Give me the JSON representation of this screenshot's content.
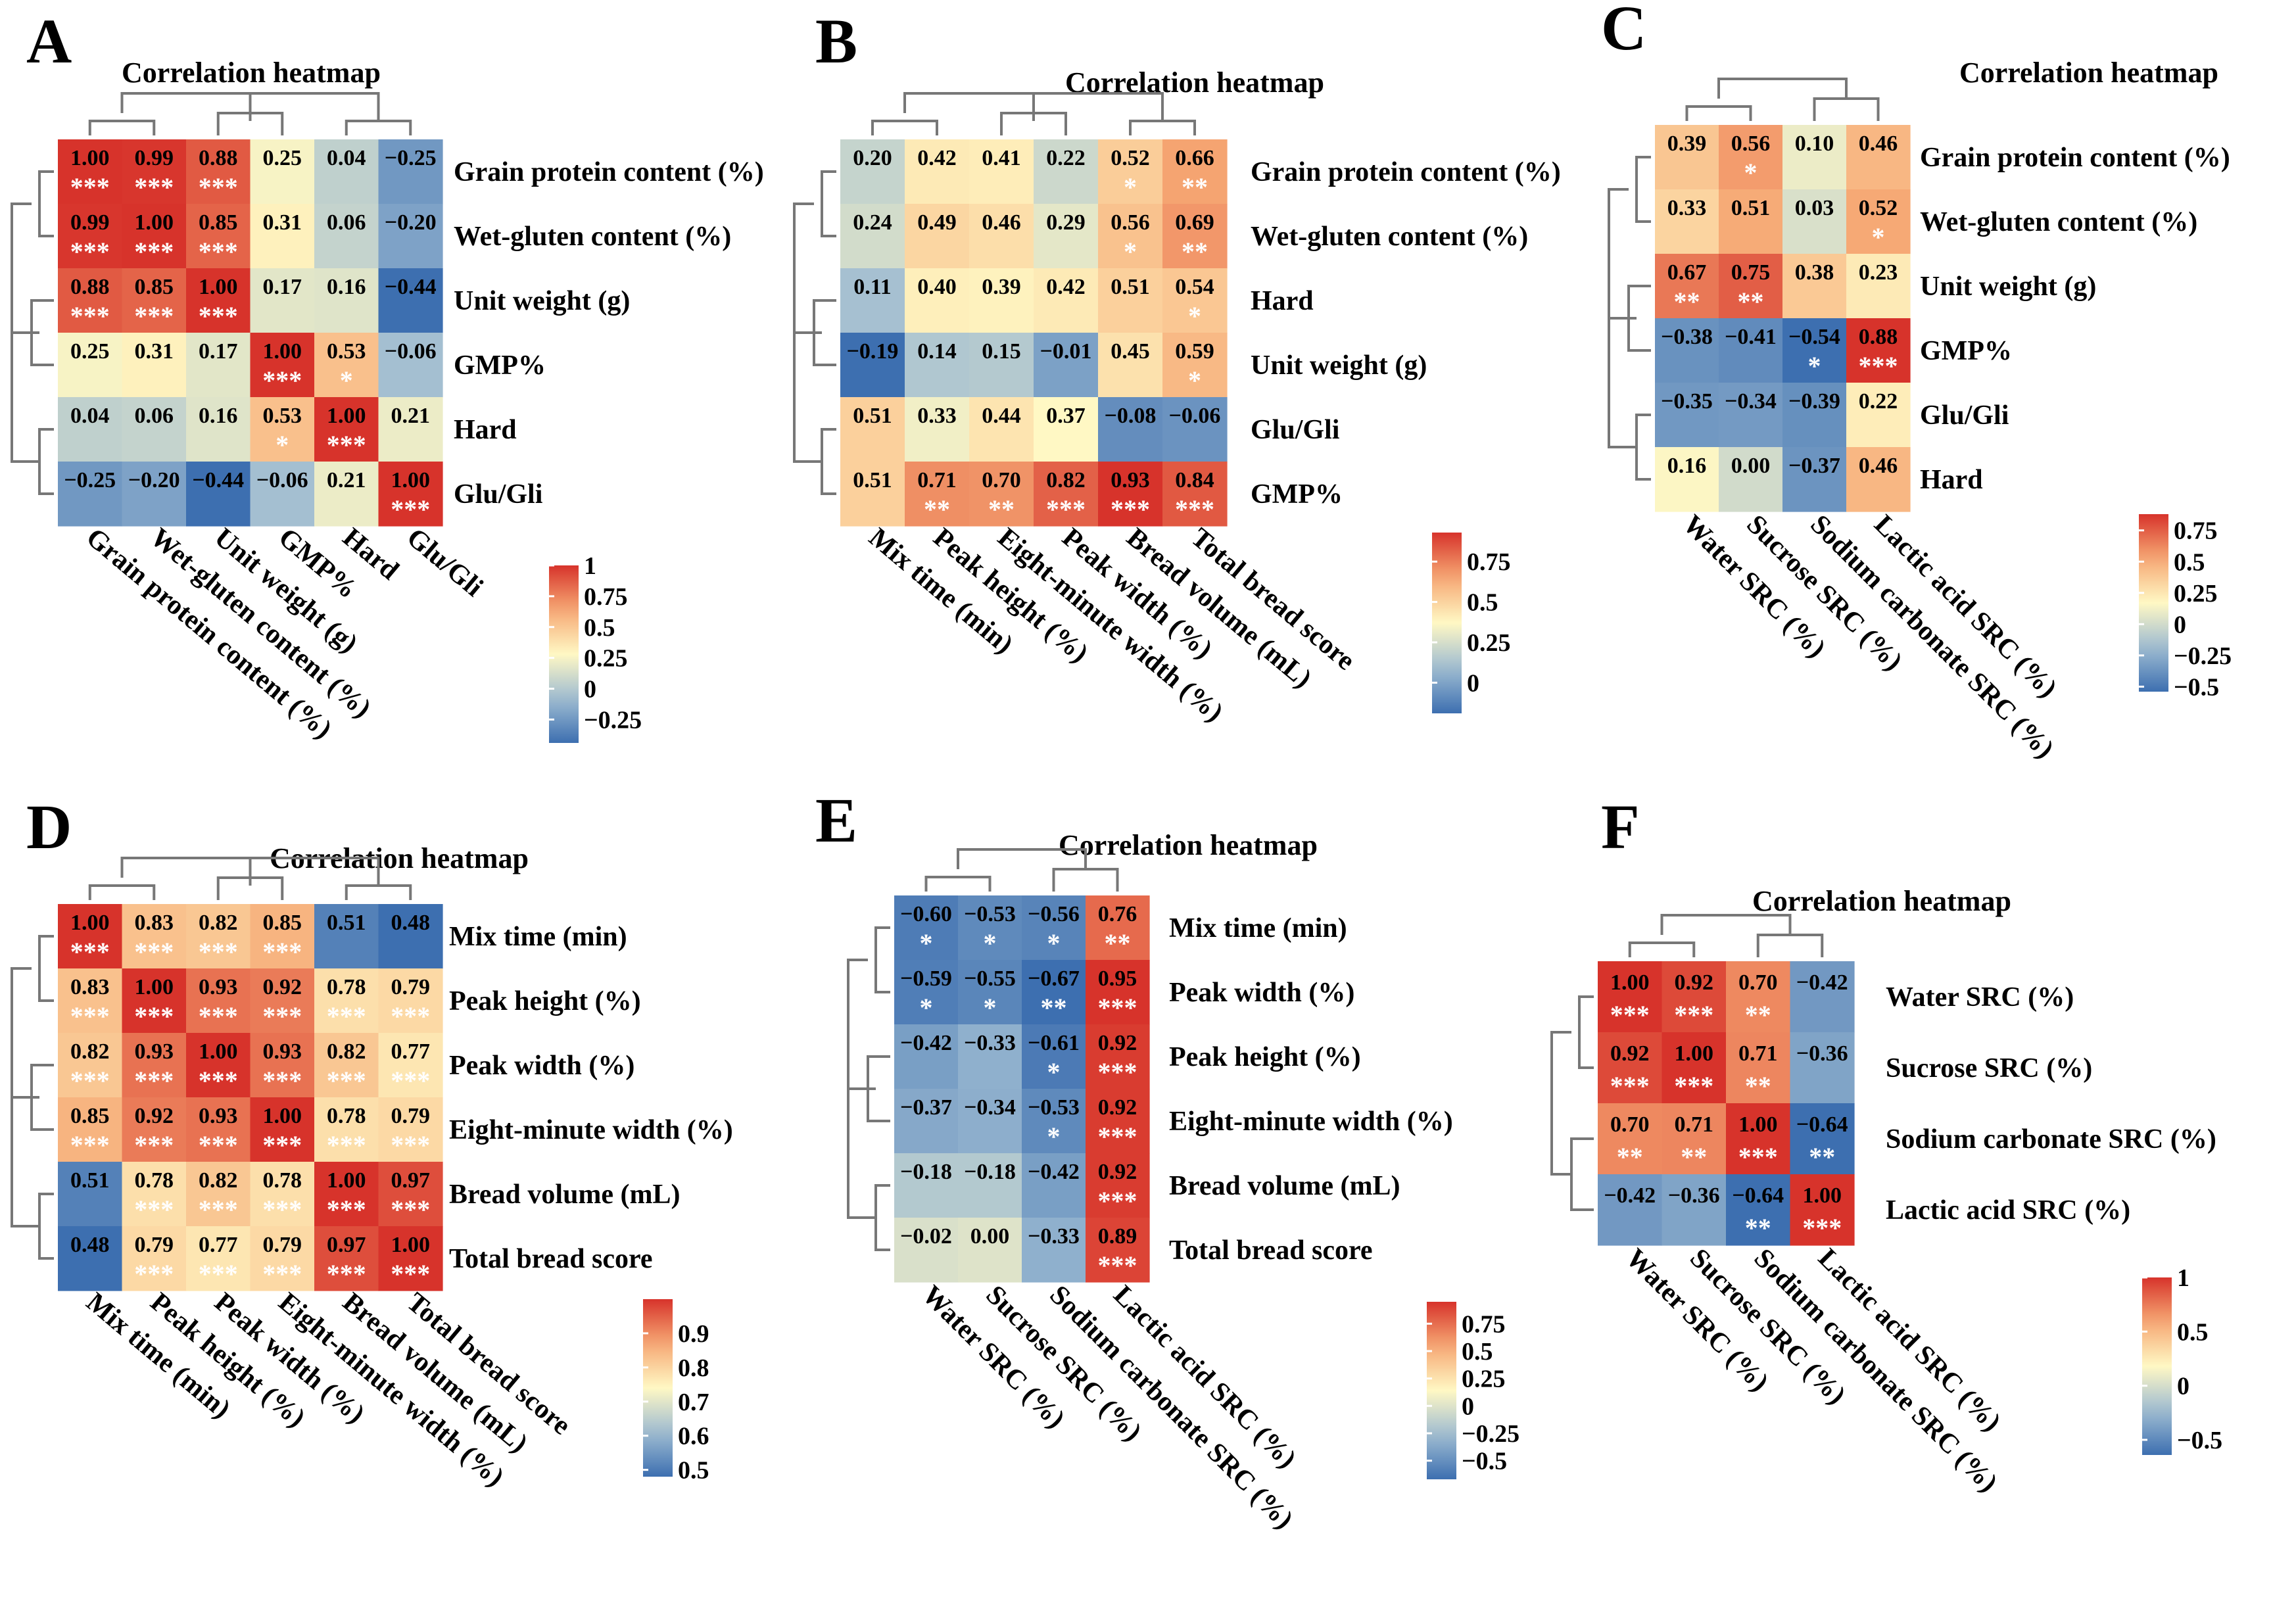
{
  "colors": {
    "scale": [
      "#3d6fb0",
      "#9fbcd2",
      "#fff8c4",
      "#f6a874",
      "#d7332b"
    ],
    "stars": "#ffffff",
    "dendrogram": "#777777",
    "text": "#000000"
  },
  "chart_data": [
    {
      "letter": "A",
      "type": "heatmap",
      "title": "Correlation heatmap",
      "rows": [
        "Grain protein content (%)",
        "Wet-gluten content (%)",
        "Unit weight (g)",
        "GMP%",
        "Hard",
        "Glu/Gli"
      ],
      "cols": [
        "Grain protein content (%)",
        "Wet-gluten content (%)",
        "Unit weight (g)",
        "GMP%",
        "Hard",
        "Glu/Gli"
      ],
      "values": [
        [
          "1.00",
          "0.99",
          "0.88",
          "0.25",
          "0.04",
          "−0.25"
        ],
        [
          "0.99",
          "1.00",
          "0.85",
          "0.31",
          "0.06",
          "−0.20"
        ],
        [
          "0.88",
          "0.85",
          "1.00",
          "0.17",
          "0.16",
          "−0.44"
        ],
        [
          "0.25",
          "0.31",
          "0.17",
          "1.00",
          "0.53",
          "−0.06"
        ],
        [
          "0.04",
          "0.06",
          "0.16",
          "0.53",
          "1.00",
          "0.21"
        ],
        [
          "−0.25",
          "−0.20",
          "−0.44",
          "−0.06",
          "0.21",
          "1.00"
        ]
      ],
      "stars": [
        [
          "***",
          "***",
          "***",
          "",
          "",
          ""
        ],
        [
          "***",
          "***",
          "***",
          "",
          "",
          ""
        ],
        [
          "***",
          "***",
          "***",
          "",
          "",
          ""
        ],
        [
          "",
          "",
          "",
          "***",
          "*",
          ""
        ],
        [
          "",
          "",
          "",
          "*",
          "***",
          ""
        ],
        [
          "",
          "",
          "",
          "",
          "",
          "***"
        ]
      ],
      "legend": {
        "min": -0.44,
        "max": 1,
        "ticks": [
          "1",
          "0.75",
          "0.5",
          "0.25",
          "0",
          "−0.25"
        ]
      }
    },
    {
      "letter": "B",
      "type": "heatmap",
      "title": "Correlation heatmap",
      "rows": [
        "Grain protein content (%)",
        "Wet-gluten content (%)",
        "Hard",
        "Unit weight (g)",
        "Glu/Gli",
        "GMP%"
      ],
      "cols": [
        "Mix time (min)",
        "Peak height (%)",
        "Eight-minute width (%)",
        "Peak width (%)",
        "Bread volume (mL)",
        "Total bread score"
      ],
      "values": [
        [
          "0.20",
          "0.42",
          "0.41",
          "0.22",
          "0.52",
          "0.66"
        ],
        [
          "0.24",
          "0.49",
          "0.46",
          "0.29",
          "0.56",
          "0.69"
        ],
        [
          "0.11",
          "0.40",
          "0.39",
          "0.42",
          "0.51",
          "0.54"
        ],
        [
          "−0.19",
          "0.14",
          "0.15",
          "−0.01",
          "0.45",
          "0.59"
        ],
        [
          "0.51",
          "0.33",
          "0.44",
          "0.37",
          "−0.08",
          "−0.06"
        ],
        [
          "0.51",
          "0.71",
          "0.70",
          "0.82",
          "0.93",
          "0.84"
        ]
      ],
      "stars": [
        [
          "",
          "",
          "",
          "",
          "*",
          "**"
        ],
        [
          "",
          "",
          "",
          "",
          "*",
          "**"
        ],
        [
          "",
          "",
          "",
          "",
          "",
          "*"
        ],
        [
          "",
          "",
          "",
          "",
          "",
          "*"
        ],
        [
          "",
          "",
          "",
          "",
          "",
          ""
        ],
        [
          "",
          "**",
          "**",
          "***",
          "***",
          "***"
        ]
      ],
      "legend": {
        "min": -0.19,
        "max": 0.93,
        "ticks": [
          "0.75",
          "0.5",
          "0.25",
          "0"
        ]
      }
    },
    {
      "letter": "C",
      "type": "heatmap",
      "title": "Correlation heatmap",
      "rows": [
        "Grain protein content (%)",
        "Wet-gluten content (%)",
        "Unit weight (g)",
        "GMP%",
        "Glu/Gli",
        "Hard"
      ],
      "cols": [
        "Water SRC (%)",
        "Sucrose SRC (%)",
        "Sodium carbonate SRC (%)",
        "Lactic acid SRC (%)"
      ],
      "values": [
        [
          "0.39",
          "0.56",
          "0.10",
          "0.46"
        ],
        [
          "0.33",
          "0.51",
          "0.03",
          "0.52"
        ],
        [
          "0.67",
          "0.75",
          "0.38",
          "0.23"
        ],
        [
          "−0.38",
          "−0.41",
          "−0.54",
          "0.88"
        ],
        [
          "−0.35",
          "−0.34",
          "−0.39",
          "0.22"
        ],
        [
          "0.16",
          "0.00",
          "−0.37",
          "0.46"
        ]
      ],
      "stars": [
        [
          "",
          "*",
          "",
          ""
        ],
        [
          "",
          "",
          "",
          "*"
        ],
        [
          "**",
          "**",
          "",
          ""
        ],
        [
          "",
          "",
          "*",
          "***"
        ],
        [
          "",
          "",
          "",
          ""
        ],
        [
          "",
          "",
          "",
          ""
        ]
      ],
      "legend": {
        "min": -0.54,
        "max": 0.88,
        "ticks": [
          "0.75",
          "0.5",
          "0.25",
          "0",
          "−0.25",
          "−0.5"
        ]
      }
    },
    {
      "letter": "D",
      "type": "heatmap",
      "title": "Correlation heatmap",
      "rows": [
        "Mix time (min)",
        "Peak height (%)",
        "Peak width (%)",
        "Eight-minute width (%)",
        "Bread volume (mL)",
        "Total bread score"
      ],
      "cols": [
        "Mix time (min)",
        "Peak height (%)",
        "Peak width (%)",
        "Eight-minute width (%)",
        "Bread volume (mL)",
        "Total bread score"
      ],
      "values": [
        [
          "1.00",
          "0.83",
          "0.82",
          "0.85",
          "0.51",
          "0.48"
        ],
        [
          "0.83",
          "1.00",
          "0.93",
          "0.92",
          "0.78",
          "0.79"
        ],
        [
          "0.82",
          "0.93",
          "1.00",
          "0.93",
          "0.82",
          "0.77"
        ],
        [
          "0.85",
          "0.92",
          "0.93",
          "1.00",
          "0.78",
          "0.79"
        ],
        [
          "0.51",
          "0.78",
          "0.82",
          "0.78",
          "1.00",
          "0.97"
        ],
        [
          "0.48",
          "0.79",
          "0.77",
          "0.79",
          "0.97",
          "1.00"
        ]
      ],
      "stars": [
        [
          "***",
          "***",
          "***",
          "***",
          "",
          ""
        ],
        [
          "***",
          "***",
          "***",
          "***",
          "***",
          "***"
        ],
        [
          "***",
          "***",
          "***",
          "***",
          "***",
          "***"
        ],
        [
          "***",
          "***",
          "***",
          "***",
          "***",
          "***"
        ],
        [
          "",
          "***",
          "***",
          "***",
          "***",
          "***"
        ],
        [
          "",
          "***",
          "***",
          "***",
          "***",
          "***"
        ]
      ],
      "legend": {
        "min": 0.48,
        "max": 1,
        "ticks": [
          "0.9",
          "0.8",
          "0.7",
          "0.6",
          "0.5"
        ]
      }
    },
    {
      "letter": "E",
      "type": "heatmap",
      "title": "Correlation heatmap",
      "rows": [
        "Mix time (min)",
        "Peak width (%)",
        "Peak height (%)",
        "Eight-minute width (%)",
        "Bread volume (mL)",
        "Total bread score"
      ],
      "cols": [
        "Water SRC (%)",
        "Sucrose SRC (%)",
        "Sodium carbonate SRC (%)",
        "Lactic acid SRC (%)"
      ],
      "values": [
        [
          "−0.60",
          "−0.53",
          "−0.56",
          "0.76"
        ],
        [
          "−0.59",
          "−0.55",
          "−0.67",
          "0.95"
        ],
        [
          "−0.42",
          "−0.33",
          "−0.61",
          "0.92"
        ],
        [
          "−0.37",
          "−0.34",
          "−0.53",
          "0.92"
        ],
        [
          "−0.18",
          "−0.18",
          "−0.42",
          "0.92"
        ],
        [
          "−0.02",
          "0.00",
          "−0.33",
          "0.89"
        ]
      ],
      "stars": [
        [
          "*",
          "*",
          "*",
          "**"
        ],
        [
          "*",
          "*",
          "**",
          "***"
        ],
        [
          "",
          "",
          "*",
          "***"
        ],
        [
          "",
          "",
          "*",
          "***"
        ],
        [
          "",
          "",
          "",
          "***"
        ],
        [
          "",
          "",
          "",
          "***"
        ]
      ],
      "legend": {
        "min": -0.67,
        "max": 0.95,
        "ticks": [
          "0.75",
          "0.5",
          "0.25",
          "0",
          "−0.25",
          "−0.5"
        ]
      }
    },
    {
      "letter": "F",
      "type": "heatmap",
      "title": "Correlation heatmap",
      "rows": [
        "Water SRC (%)",
        "Sucrose SRC (%)",
        "Sodium carbonate SRC (%)",
        "Lactic acid SRC (%)"
      ],
      "cols": [
        "Water SRC (%)",
        "Sucrose SRC (%)",
        "Sodium carbonate SRC (%)",
        "Lactic acid SRC (%)"
      ],
      "values": [
        [
          "1.00",
          "0.92",
          "0.70",
          "−0.42"
        ],
        [
          "0.92",
          "1.00",
          "0.71",
          "−0.36"
        ],
        [
          "0.70",
          "0.71",
          "1.00",
          "−0.64"
        ],
        [
          "−0.42",
          "−0.36",
          "−0.64",
          "1.00"
        ]
      ],
      "stars": [
        [
          "***",
          "***",
          "**",
          ""
        ],
        [
          "***",
          "***",
          "**",
          ""
        ],
        [
          "**",
          "**",
          "***",
          "**"
        ],
        [
          "",
          "",
          "**",
          "***"
        ]
      ],
      "legend": {
        "min": -0.64,
        "max": 1,
        "ticks": [
          "1",
          "0.5",
          "0",
          "−0.5"
        ]
      }
    }
  ]
}
